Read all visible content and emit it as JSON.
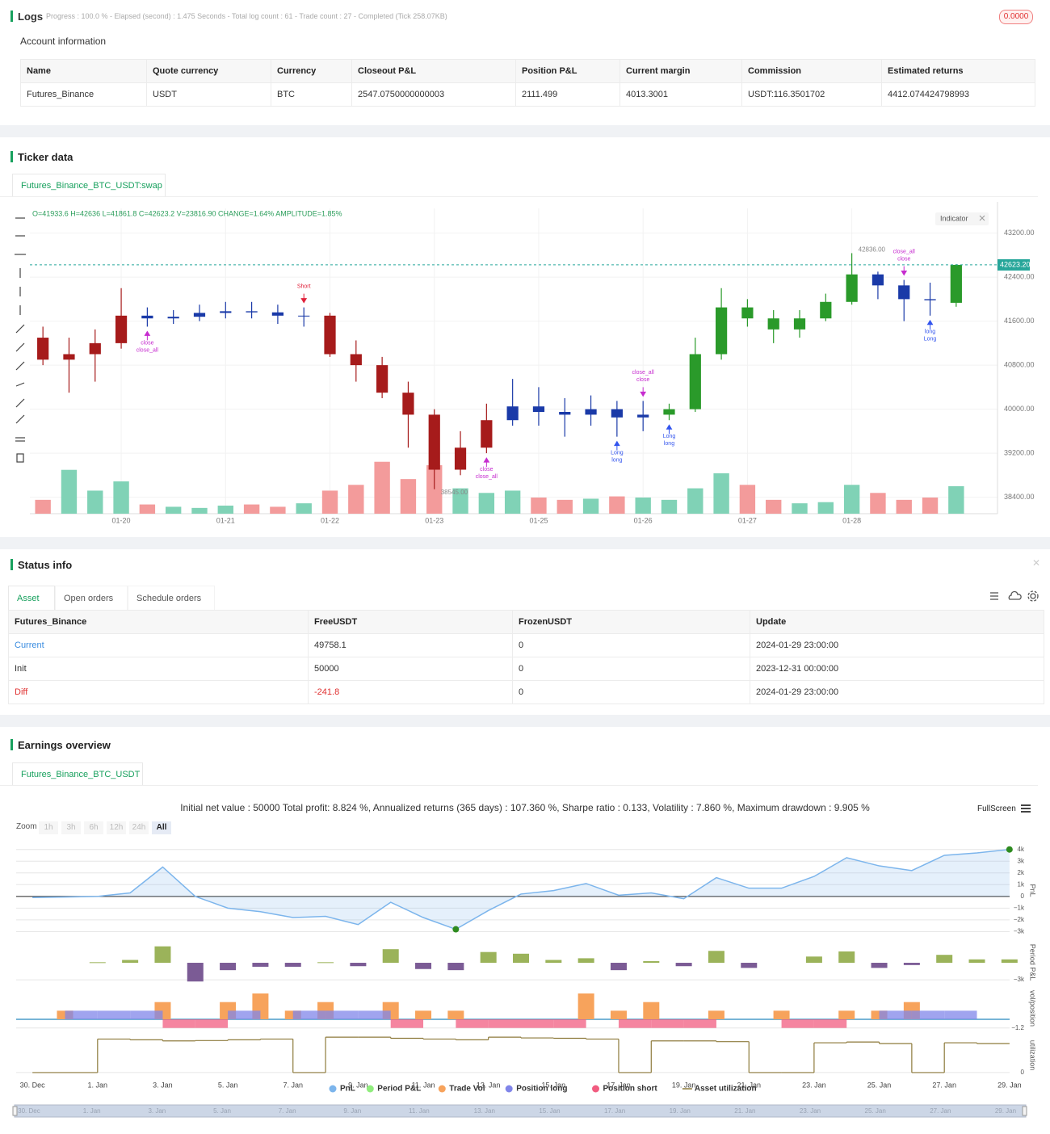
{
  "logs": {
    "title": "Logs",
    "progress": "Progress : 100.0 % - Elapsed (second) : 1.475 Seconds - Total log count : 61 - Trade count : 27 - Completed (Tick 258.07KB)",
    "badge": "0.0000"
  },
  "account": {
    "title": "Account information",
    "table": {
      "headers": [
        "Name",
        "Quote currency",
        "Currency",
        "Closeout P&L",
        "Position P&L",
        "Current margin",
        "Commission",
        "Estimated returns"
      ],
      "rows": [
        [
          "Futures_Binance",
          "USDT",
          "BTC",
          "2547.0750000000003",
          "2111.499",
          "4013.3001",
          "USDT:116.3501702",
          "4412.074424798993"
        ]
      ]
    }
  },
  "ticker": {
    "title": "Ticker data",
    "tab": "Futures_Binance_BTC_USDT:swap"
  },
  "status": {
    "title": "Status info",
    "tabs": [
      "Asset",
      "Open orders",
      "Schedule orders"
    ],
    "table": {
      "headers": [
        "Futures_Binance",
        "FreeUSDT",
        "FrozenUSDT",
        "Update"
      ],
      "rows": [
        [
          "Current",
          "49758.1",
          "0",
          "2024-01-29 23:00:00"
        ],
        [
          "Init",
          "50000",
          "0",
          "2023-12-31 00:00:00"
        ],
        [
          "Diff",
          "-241.8",
          "0",
          "2024-01-29 23:00:00"
        ]
      ]
    }
  },
  "earnings": {
    "title": "Earnings overview",
    "tab": "Futures_Binance_BTC_USDT",
    "summary": "Initial net value : 50000 Total profit: 8.824 %, Annualized returns (365 days) : 107.360 %, Sharpe ratio : 0.133, Volatility : 7.860 %, Maximum drawdown : 9.905 %",
    "fullscreen": "FullScreen",
    "zoom_label": "Zoom",
    "zoom_buttons": [
      "1h",
      "3h",
      "6h",
      "12h",
      "24h",
      "All"
    ]
  },
  "chart_data": [
    {
      "type": "candlestick",
      "ohlc_label": "O=41933.6 H=42636 L=41861.8 C=42623.2 V=23816.90 CHANGE=1.64% AMPLITUDE=1.85%",
      "indicator_button": "Indicator",
      "grid": true,
      "categories": [
        null,
        null,
        null,
        "01-20",
        null,
        null,
        null,
        "01-21",
        null,
        null,
        null,
        "01-22",
        null,
        null,
        null,
        "01-23",
        null,
        null,
        null,
        "01-25",
        null,
        null,
        null,
        "01-26",
        null,
        null,
        null,
        "01-27",
        null,
        null,
        null,
        "01-28",
        null,
        null,
        null,
        null
      ],
      "open": [
        41300,
        40900,
        41000,
        41200,
        41700,
        41650,
        41680,
        41750,
        41780,
        41760,
        41700,
        41700,
        41000,
        40800,
        40300,
        39900,
        38900,
        39300,
        39800,
        40050,
        39950,
        39900,
        40000,
        39850,
        39900,
        40000,
        41000,
        41850,
        41650,
        41450,
        41650,
        41950,
        42450,
        42250,
        42000,
        41933.6
      ],
      "high": [
        41500,
        41300,
        41450,
        42200,
        41850,
        41800,
        41900,
        41950,
        41950,
        41900,
        41850,
        41750,
        41250,
        40950,
        40500,
        40000,
        39600,
        40100,
        40550,
        40400,
        40200,
        40250,
        40150,
        40150,
        40100,
        41300,
        42200,
        42000,
        41800,
        41800,
        42100,
        42836,
        42500,
        42350,
        42300,
        42636
      ],
      "low": [
        40800,
        40300,
        40500,
        41100,
        41500,
        41550,
        41600,
        41650,
        41650,
        41550,
        41500,
        40950,
        40500,
        40200,
        39300,
        38545,
        38800,
        39200,
        39700,
        39700,
        39500,
        39700,
        39500,
        39600,
        39800,
        39950,
        40900,
        41500,
        41200,
        41300,
        41600,
        41900,
        42000,
        41600,
        41700,
        41861.8
      ],
      "close": [
        40900,
        41000,
        41200,
        41700,
        41650,
        41680,
        41750,
        41780,
        41760,
        41700,
        41700,
        41000,
        40800,
        40300,
        39900,
        38900,
        39300,
        39800,
        40050,
        39950,
        39900,
        40000,
        39850,
        39900,
        40000,
        41000,
        41850,
        41650,
        41450,
        41650,
        41950,
        42450,
        42250,
        42000,
        41980,
        42623.2
      ],
      "volume": [
        12000,
        38000,
        20000,
        28000,
        8000,
        6000,
        5000,
        7000,
        8000,
        6000,
        9000,
        20000,
        25000,
        45000,
        30000,
        42000,
        22000,
        18000,
        20000,
        14000,
        12000,
        13000,
        15000,
        14000,
        12000,
        22000,
        35000,
        25000,
        12000,
        9000,
        10000,
        25000,
        18000,
        12000,
        14000,
        23816.9
      ],
      "colors": [
        "#a61b1b",
        "#a61b1b",
        "#a61b1b",
        "#a61b1b",
        "#1a3aa8",
        "#1a3aa8",
        "#1a3aa8",
        "#1a3aa8",
        "#1a3aa8",
        "#1a3aa8",
        "#1a3aa8",
        "#a61b1b",
        "#a61b1b",
        "#a61b1b",
        "#a61b1b",
        "#a61b1b",
        "#a61b1b",
        "#a61b1b",
        "#1a3aa8",
        "#1a3aa8",
        "#1a3aa8",
        "#1a3aa8",
        "#1a3aa8",
        "#1a3aa8",
        "#2a9a2a",
        "#2a9a2a",
        "#2a9a2a",
        "#2a9a2a",
        "#2a9a2a",
        "#2a9a2a",
        "#2a9a2a",
        "#2a9a2a",
        "#1a3aa8",
        "#1a3aa8",
        "#1a3aa8",
        "#2a9a2a"
      ],
      "volume_colors": {
        "up": "#80d2b6",
        "down": "#f39b9b"
      },
      "volume_lim": [
        0,
        70000
      ],
      "ylim": [
        38100,
        43650
      ],
      "yticks": [
        {
          "value": 38400,
          "label": "38400.00"
        },
        {
          "value": 39200,
          "label": "39200.00"
        },
        {
          "value": 40000,
          "label": "40000.00"
        },
        {
          "value": 40800,
          "label": "40800.00"
        },
        {
          "value": 41600,
          "label": "41600.00"
        },
        {
          "value": 42400,
          "label": "42400.00"
        },
        {
          "value": 43200,
          "label": "43200.00"
        }
      ],
      "last_price": {
        "value": 42623.2,
        "label": "42623.20",
        "color": "#26a69a"
      },
      "price_labels": [
        {
          "index": 31,
          "value": 42836,
          "label": "42836.00"
        },
        {
          "index": 15,
          "value": 38545,
          "label": "38545.00"
        }
      ],
      "markers": [
        {
          "index": 10,
          "label": "Short",
          "side": "top",
          "color": "#e0203a"
        },
        {
          "index": 4,
          "label": "close",
          "side": "bottom",
          "color": "#c62ccf"
        },
        {
          "index": 4,
          "label": "close_all",
          "side": "bottom",
          "color": "#c62ccf"
        },
        {
          "index": 17,
          "label": "close",
          "side": "bottom",
          "color": "#c62ccf"
        },
        {
          "index": 17,
          "label": "close_all",
          "side": "bottom",
          "color": "#c62ccf"
        },
        {
          "index": 22,
          "label": "Long",
          "side": "bottom",
          "color": "#3355ee"
        },
        {
          "index": 22,
          "label": "long",
          "side": "bottom",
          "color": "#3355ee"
        },
        {
          "index": 23,
          "label": "close",
          "side": "top",
          "color": "#c62ccf"
        },
        {
          "index": 23,
          "label": "close_all",
          "side": "top",
          "color": "#c62ccf"
        },
        {
          "index": 24,
          "label": "Long",
          "side": "bottom",
          "color": "#3355ee"
        },
        {
          "index": 24,
          "label": "long",
          "side": "bottom",
          "color": "#3355ee"
        },
        {
          "index": 33,
          "label": "close",
          "side": "top",
          "color": "#c62ccf"
        },
        {
          "index": 33,
          "label": "close_all",
          "side": "top",
          "color": "#c62ccf"
        },
        {
          "index": 34,
          "label": "long",
          "side": "bottom",
          "color": "#3355ee"
        },
        {
          "index": 34,
          "label": "Long",
          "side": "bottom",
          "color": "#3355ee"
        }
      ]
    },
    {
      "type": "multi-panel",
      "legend": "bottom",
      "navigator": true,
      "x": [
        "30. Dec",
        "31. Dec",
        "1. Jan",
        "2. Jan",
        "3. Jan",
        "4. Jan",
        "5. Jan",
        "6. Jan",
        "7. Jan",
        "8. Jan",
        "9. Jan",
        "10. Jan",
        "11. Jan",
        "12. Jan",
        "13. Jan",
        "14. Jan",
        "15. Jan",
        "16. Jan",
        "17. Jan",
        "18. Jan",
        "19. Jan",
        "20. Jan",
        "21. Jan",
        "22. Jan",
        "23. Jan",
        "24. Jan",
        "25. Jan",
        "26. Jan",
        "27. Jan",
        "28. Jan",
        "29. Jan"
      ],
      "xticks": [
        "30. Dec",
        "1. Jan",
        "3. Jan",
        "5. Jan",
        "7. Jan",
        "9. Jan",
        "11. Jan",
        "13. Jan",
        "15. Jan",
        "17. Jan",
        "19. Jan",
        "21. Jan",
        "23. Jan",
        "25. Jan",
        "27. Jan",
        "29. Jan"
      ],
      "highlight_points": [
        13,
        30
      ],
      "highlight_color": "#2e8b20",
      "panels": [
        {
          "axis_title": "PnL",
          "ylim": [
            -3450,
            4460
          ],
          "yticks": [
            {
              "value": -3000,
              "label": "−3k"
            },
            {
              "value": -2000,
              "label": "−2k"
            },
            {
              "value": -1000,
              "label": "−1k"
            },
            0,
            {
              "value": 1000,
              "label": "1k"
            },
            {
              "value": 2000,
              "label": "2k"
            },
            {
              "value": 3000,
              "label": "3k"
            },
            {
              "value": 4000,
              "label": "4k"
            }
          ],
          "series": [
            {
              "name": "PnL",
              "type": "area",
              "color": "#7cb5ec",
              "values": [
                -100,
                -50,
                0,
                300,
                2500,
                0,
                -1000,
                -1300,
                -1800,
                -1700,
                -2400,
                -500,
                -1800,
                -2800,
                -1200,
                200,
                500,
                1100,
                100,
                300,
                -200,
                1600,
                700,
                700,
                1700,
                3300,
                2600,
                2200,
                3500,
                3700,
                4000
              ]
            }
          ]
        },
        {
          "axis_title": "Period P&L",
          "ylim": [
            -3700,
            3850
          ],
          "yticks": [
            {
              "value": -3000,
              "label": "−3k"
            }
          ],
          "series": [
            {
              "name": "Period P&L",
              "type": "column",
              "color": "#90ed7d",
              "up_color": "#9bb35a",
              "down_color": "#7b5b95",
              "values": [
                null,
                null,
                100,
                500,
                2900,
                -3300,
                -1300,
                -700,
                -700,
                100,
                -600,
                2400,
                -1100,
                -1300,
                1900,
                1600,
                500,
                800,
                -1300,
                300,
                -600,
                2100,
                -900,
                null,
                1100,
                2000,
                -900,
                -400,
                1400,
                600,
                600
              ]
            }
          ]
        },
        {
          "axis_title": "vol/position",
          "ylim": [
            -1.46,
            4.5
          ],
          "yticks": [
            {
              "value": -1.2,
              "label": "−1.2"
            }
          ],
          "series": [
            {
              "name": "Trade Vol",
              "type": "column",
              "color": "#f7a35c",
              "values": [
                null,
                1.2,
                null,
                null,
                2.4,
                null,
                2.4,
                3.6,
                1.2,
                2.4,
                null,
                2.4,
                1.2,
                1.2,
                null,
                null,
                null,
                3.6,
                1.2,
                2.4,
                null,
                1.2,
                null,
                1.2,
                null,
                1.2,
                1.2,
                2.4,
                null,
                null,
                null
              ]
            },
            {
              "name": "Position long",
              "type": "position",
              "color": "#8085e9",
              "values": [
                null,
                1.2,
                1.2,
                1.2,
                null,
                null,
                1.2,
                null,
                1.2,
                1.2,
                1.2,
                null,
                null,
                null,
                null,
                null,
                null,
                null,
                null,
                null,
                null,
                null,
                null,
                null,
                null,
                null,
                1.2,
                1.2,
                1.2,
                null,
                null
              ]
            },
            {
              "name": "Position short",
              "type": "position",
              "color": "#f15c80",
              "values": [
                null,
                null,
                null,
                null,
                -1.2,
                -1.2,
                null,
                null,
                null,
                null,
                null,
                -1.2,
                null,
                -1.2,
                -1.2,
                -1.2,
                -1.2,
                null,
                -1.2,
                -1.2,
                -1.2,
                null,
                null,
                -1.2,
                -1.2,
                null,
                null,
                null,
                null,
                null,
                null
              ]
            }
          ]
        },
        {
          "axis_title": "utilization",
          "ylim": [
            -0.11,
            1.04
          ],
          "yticks": [
            0
          ],
          "series": [
            {
              "name": "Asset utilization",
              "type": "step",
              "color": "#8d7a3b",
              "values": [
                0,
                0,
                0.9,
                0.88,
                0.85,
                0.86,
                0.88,
                0.9,
                0,
                0.95,
                0.95,
                0.92,
                0.9,
                0.88,
                0.95,
                0.93,
                0.92,
                0.9,
                0,
                0.85,
                0.85,
                0.83,
                0,
                0,
                0.8,
                0.82,
                0.78,
                0,
                0.8,
                0.78,
                0.78
              ]
            }
          ]
        }
      ]
    }
  ]
}
